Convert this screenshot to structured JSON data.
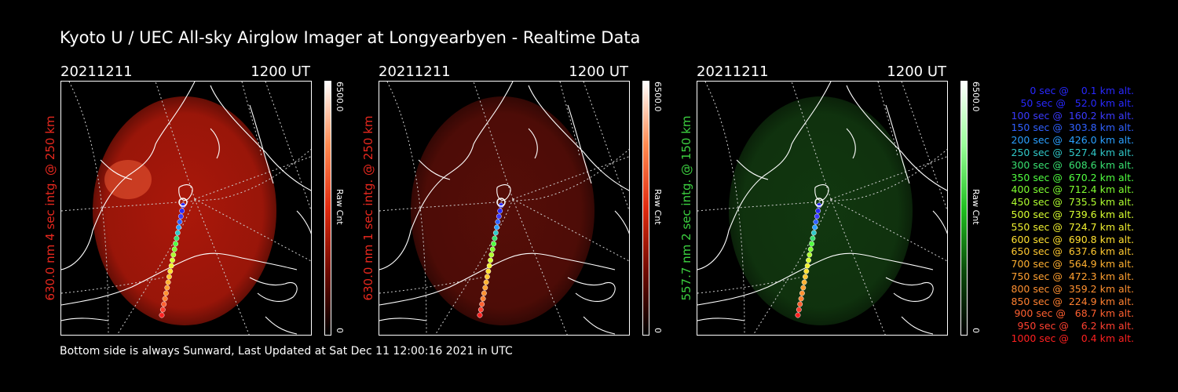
{
  "title": "Kyoto U / UEC All-sky Airglow Imager at Longyearbyen - Realtime Data",
  "footer": "Bottom side is always Sunward, Last Updated at Sat Dec 11 12:00:16 2021 in UTC",
  "panels": [
    {
      "date": "20211211",
      "time": "1200 UT",
      "ylabel": "630.0 nm 4 sec intg. @ 250 km",
      "label_color": "#e8281e",
      "glow_color": "#c81c0c",
      "glow_opacity": 0.85,
      "cbar_max": "6500.0",
      "cbar_unit": "Raw Cnt",
      "cbar_min": "0",
      "cbar_colors": [
        "#ffffff",
        "#ff8a50",
        "#e02a10",
        "#700a00",
        "#000000"
      ]
    },
    {
      "date": "20211211",
      "time": "1200 UT",
      "ylabel": "630.0 nm 1 sec intg. @ 250 km",
      "label_color": "#e8281e",
      "glow_color": "#5a0e08",
      "glow_opacity": 0.95,
      "cbar_max": "6500.0",
      "cbar_unit": "Raw Cnt",
      "cbar_min": "0",
      "cbar_colors": [
        "#ffffff",
        "#ff8a50",
        "#e02a10",
        "#700a00",
        "#000000"
      ]
    },
    {
      "date": "20211211",
      "time": "1200 UT",
      "ylabel": "557.7 nm 2 sec intg. @ 150 km",
      "label_color": "#3cd040",
      "glow_color": "#123a10",
      "glow_opacity": 0.95,
      "cbar_max": "6500.0",
      "cbar_unit": "Raw Cnt",
      "cbar_min": "0",
      "cbar_colors": [
        "#ffffff",
        "#9aff9a",
        "#20c020",
        "#0a4a0a",
        "#000000"
      ]
    }
  ],
  "legend": [
    {
      "text": "0 sec @    0.1 km alt.",
      "color": "#2828ff"
    },
    {
      "text": "50 sec @   52.0 km alt.",
      "color": "#2828ff"
    },
    {
      "text": "100 sec @  160.2 km alt.",
      "color": "#3a3aff"
    },
    {
      "text": "150 sec @  303.8 km alt.",
      "color": "#3060ff"
    },
    {
      "text": "200 sec @  426.0 km alt.",
      "color": "#2aa0ff"
    },
    {
      "text": "250 sec @  527.4 km alt.",
      "color": "#30c8c8"
    },
    {
      "text": "300 sec @  608.6 km alt.",
      "color": "#38e070"
    },
    {
      "text": "350 sec @  670.2 km alt.",
      "color": "#50ff40"
    },
    {
      "text": "400 sec @  712.4 km alt.",
      "color": "#80ff30"
    },
    {
      "text": "450 sec @  735.5 km alt.",
      "color": "#b0ff30"
    },
    {
      "text": "500 sec @  739.6 km alt.",
      "color": "#d8ff30"
    },
    {
      "text": "550 sec @  724.7 km alt.",
      "color": "#f0f030"
    },
    {
      "text": "600 sec @  690.8 km alt.",
      "color": "#ffe030"
    },
    {
      "text": "650 sec @  637.6 km alt.",
      "color": "#ffc830"
    },
    {
      "text": "700 sec @  564.9 km alt.",
      "color": "#ffb030"
    },
    {
      "text": "750 sec @  472.3 km alt.",
      "color": "#ffa030"
    },
    {
      "text": "800 sec @  359.2 km alt.",
      "color": "#ff9030"
    },
    {
      "text": "850 sec @  224.9 km alt.",
      "color": "#ff8030"
    },
    {
      "text": "900 sec @   68.7 km alt.",
      "color": "#ff6030"
    },
    {
      "text": "950 sec @    6.2 km alt.",
      "color": "#ff4030"
    },
    {
      "text": "1000 sec @    0.4 km alt.",
      "color": "#ff2020"
    }
  ]
}
